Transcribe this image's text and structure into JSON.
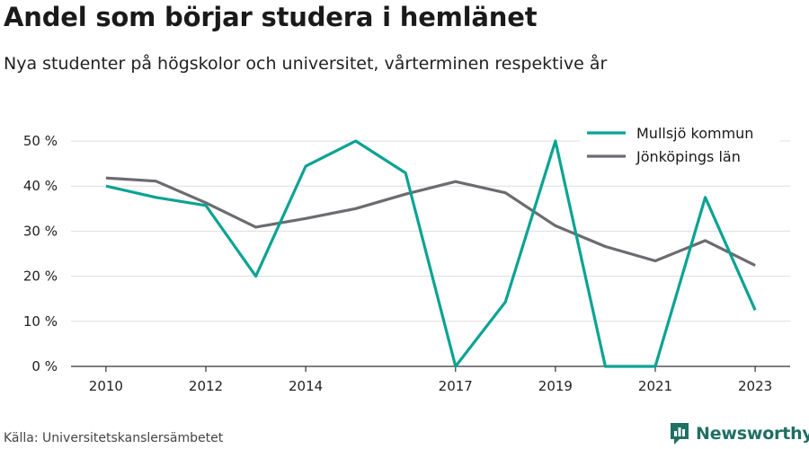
{
  "title": "Andel som börjar studera i hemlänet",
  "subtitle": "Nya studenter på högskolor och universitet, vårterminen respektive år",
  "source": "Källa: Universitetskanslersämbetet",
  "brand": "Newsworthy",
  "colors": {
    "brand": "#1f6f63"
  },
  "chart_data": {
    "type": "line",
    "x": [
      2010,
      2011,
      2012,
      2013,
      2014,
      2015,
      2016,
      2017,
      2018,
      2019,
      2020,
      2021,
      2022,
      2023
    ],
    "x_tick_values": [
      2010,
      2012,
      2014,
      2017,
      2019,
      2021,
      2023
    ],
    "x_tick_labels": [
      "2010",
      "2012",
      "2014",
      "2017",
      "2019",
      "2021",
      "2023"
    ],
    "xlim": [
      2009.3,
      2023.7
    ],
    "ylim": [
      0,
      50
    ],
    "y_tick_values": [
      0,
      10,
      20,
      30,
      40,
      50
    ],
    "y_tick_labels": [
      "0 %",
      "10 %",
      "20 %",
      "30 %",
      "40 %",
      "50 %"
    ],
    "grid": true,
    "legend_position": "top-right",
    "series": [
      {
        "name": "Mullsjö kommun",
        "color": "#0aa393",
        "values": [
          40,
          37.5,
          35.7,
          20,
          44.4,
          50,
          42.9,
          0,
          14.3,
          50,
          0,
          0,
          37.5,
          12.5
        ]
      },
      {
        "name": "Jönköpings län",
        "color": "#6b6b70",
        "values": [
          41.8,
          41.1,
          36.3,
          30.9,
          32.8,
          35,
          38.2,
          41,
          38.5,
          31.2,
          26.6,
          23.4,
          27.9,
          22.4
        ]
      }
    ]
  }
}
